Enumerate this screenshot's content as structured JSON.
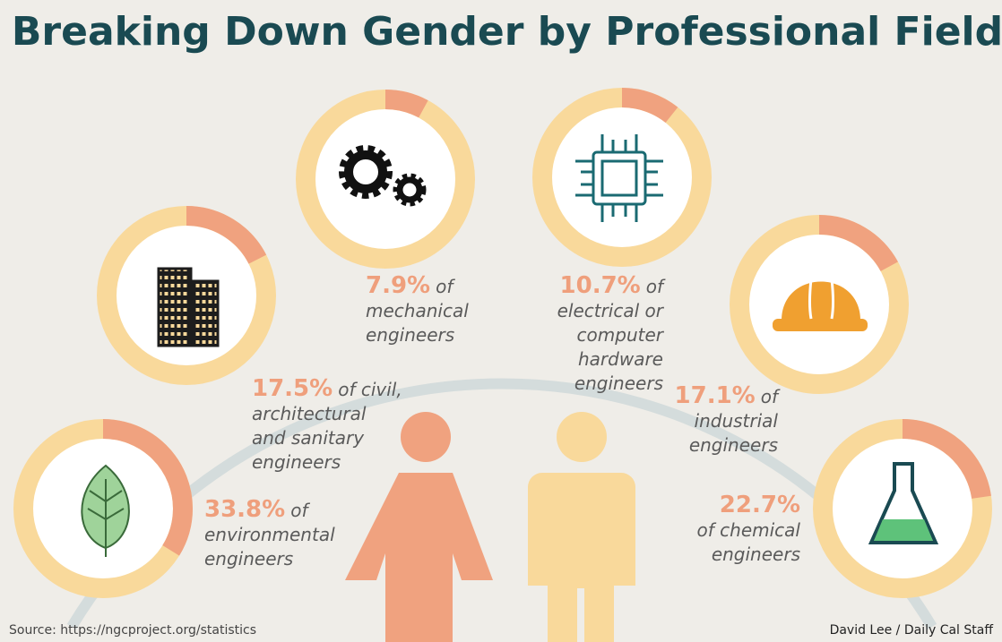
{
  "title": "Breaking Down Gender by Professional Field",
  "source": "Source: https://ngcproject.org/statistics",
  "credit": "David Lee / Daily Cal Staff",
  "chart_data": [
    {
      "type": "pie",
      "values": [
        33.8
      ],
      "value_labels": [
        "33.8%"
      ],
      "caption": [
        "of",
        "environmental",
        "engineers"
      ],
      "color": "#f0a27f",
      "track_color": "#f9d99b"
    },
    {
      "type": "pie",
      "values": [
        17.5
      ],
      "value_labels": [
        "17.5%"
      ],
      "caption": [
        "of civil,",
        "architectural",
        "and sanitary",
        "engineers"
      ],
      "color": "#f0a27f",
      "track_color": "#f9d99b"
    },
    {
      "type": "pie",
      "values": [
        7.9
      ],
      "value_labels": [
        "7.9%"
      ],
      "caption": [
        "of",
        "mechanical",
        "engineers"
      ],
      "color": "#f0a27f",
      "track_color": "#f9d99b"
    },
    {
      "type": "pie",
      "values": [
        10.7
      ],
      "value_labels": [
        "10.7%"
      ],
      "caption": [
        "of",
        "electrical or",
        "computer",
        "hardware",
        "engineers"
      ],
      "color": "#f0a27f",
      "track_color": "#f9d99b"
    },
    {
      "type": "pie",
      "values": [
        17.1
      ],
      "value_labels": [
        "17.1%"
      ],
      "caption": [
        "of",
        "industrial",
        "engineers"
      ],
      "color": "#f0a27f",
      "track_color": "#f9d99b"
    },
    {
      "type": "pie",
      "values": [
        22.7
      ],
      "value_labels": [
        "22.7%"
      ],
      "caption": [
        "of chemical",
        "engineers"
      ],
      "color": "#f0a27f",
      "track_color": "#f9d99b"
    }
  ]
}
